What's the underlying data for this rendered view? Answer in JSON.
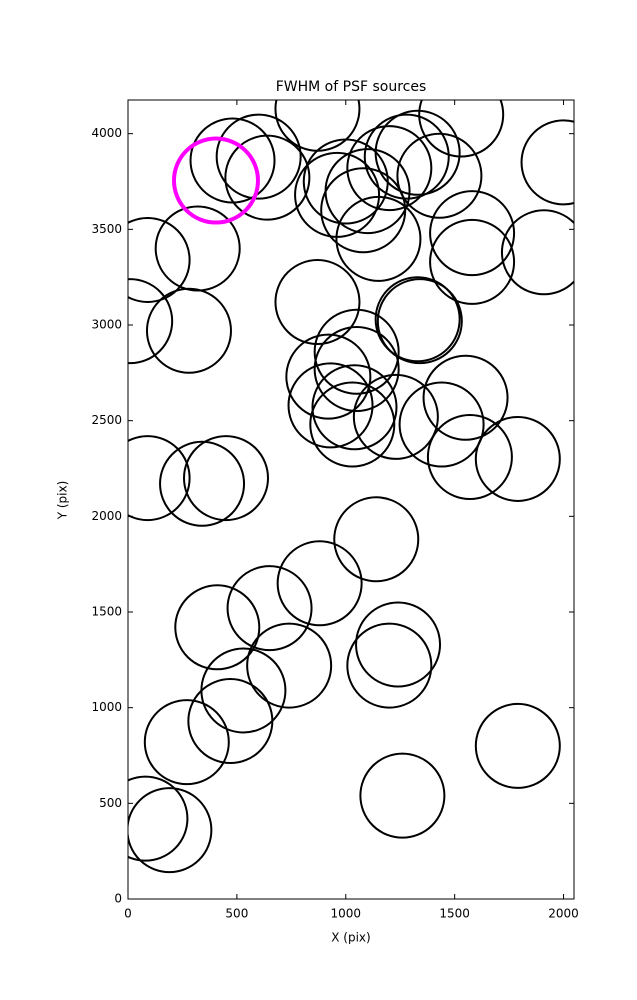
{
  "chart_data": {
    "type": "scatter",
    "title": "FWHM of PSF sources",
    "x_label": "X (pix)",
    "y_label": "Y (pix)",
    "xlim": [
      0,
      2048
    ],
    "ylim": [
      0,
      4176
    ],
    "xticks": [
      0,
      500,
      1000,
      1500,
      2000
    ],
    "yticks": [
      0,
      500,
      1000,
      1500,
      2000,
      2500,
      3000,
      3500,
      4000
    ],
    "series": [
      {
        "color": "#000000",
        "x": [
          480,
          600,
          640,
          870,
          960,
          1000,
          1080,
          1100,
          1150,
          1200,
          1280,
          1330,
          1430,
          1530,
          1580,
          1580,
          2000,
          1910,
          90,
          320,
          10,
          280,
          870,
          1330,
          1340,
          1050,
          1050,
          920,
          930,
          1040,
          1030,
          1230,
          1550,
          1440,
          1570,
          1790,
          90,
          340,
          450,
          1140,
          880,
          650,
          410,
          1240,
          1200,
          740,
          530,
          470,
          270,
          1790,
          1260,
          80,
          190
        ],
        "y": [
          3860,
          3880,
          3770,
          4130,
          3680,
          3750,
          3600,
          3700,
          3450,
          3820,
          3880,
          3900,
          3780,
          4100,
          3480,
          3330,
          3850,
          3380,
          3340,
          3400,
          3020,
          2970,
          3120,
          3030,
          3020,
          2860,
          2770,
          2730,
          2580,
          2570,
          2480,
          2520,
          2620,
          2480,
          2310,
          2300,
          2200,
          2170,
          2200,
          1880,
          1650,
          1520,
          1420,
          1330,
          1220,
          1220,
          1090,
          930,
          820,
          800,
          540,
          420,
          360
        ]
      },
      {
        "color": "#ff00ff",
        "x": [
          404
        ],
        "y": [
          3755
        ]
      }
    ]
  }
}
